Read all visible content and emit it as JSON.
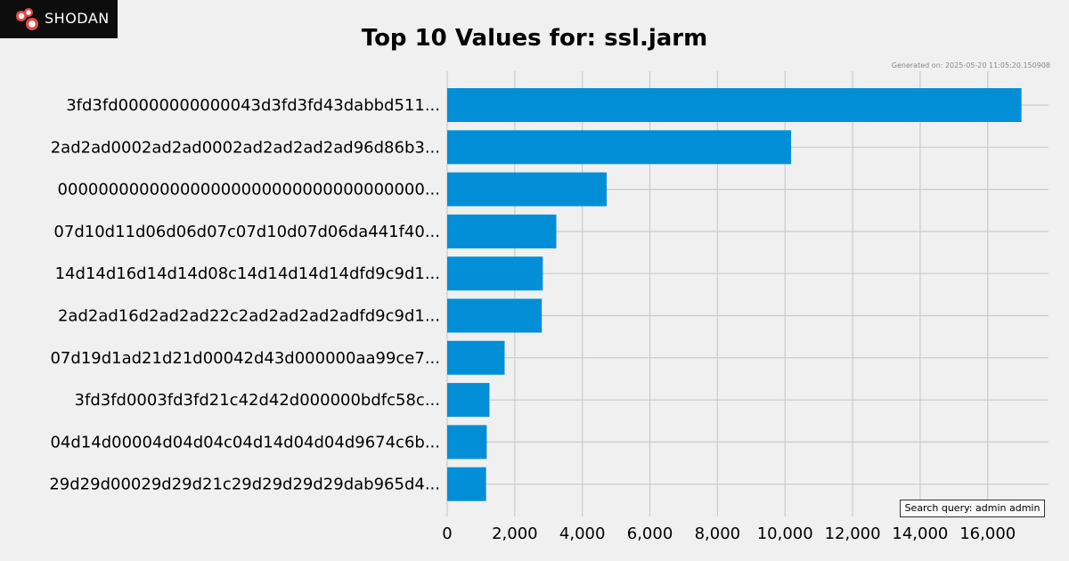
{
  "brand": {
    "name": "Shodan",
    "display": "SHODAN"
  },
  "header": {
    "title": "Top 10 Values for: ssl.jarm",
    "generated": "Generated on: 2025-05-20 11:05:20.150908"
  },
  "search_query": "Search query: admin admin",
  "colors": {
    "bar": "#028fd7",
    "background": "#f0f0f0",
    "grid": "#cbcbcb"
  },
  "chart_data": {
    "type": "bar",
    "orientation": "horizontal",
    "title": "Top 10 Values for: ssl.jarm",
    "xlabel": "",
    "ylabel": "",
    "categories": [
      "3fd3fd00000000000043d3fd3fd43dabbd511...",
      "2ad2ad0002ad2ad0002ad2ad2ad2ad96d86b3...",
      "000000000000000000000000000000000000...",
      "07d10d11d06d06d07c07d10d07d06da441f40...",
      "14d14d16d14d14d08c14d14d14d14dfd9c9d1...",
      "2ad2ad16d2ad2ad22c2ad2ad2ad2adfd9c9d1...",
      "07d19d1ad21d21d00042d43d000000aa99ce7...",
      "3fd3fd0003fd3fd21c42d42d000000bdfc58c...",
      "04d14d00004d04d04c04d14d04d04d9674c6b...",
      "29d29d00029d29d21c29d29d29d29dab965d4..."
    ],
    "values": [
      17000,
      10180,
      4720,
      3230,
      2830,
      2800,
      1700,
      1250,
      1170,
      1150
    ],
    "xlim": [
      0,
      17800
    ],
    "xticks": [
      0,
      2000,
      4000,
      6000,
      8000,
      10000,
      12000,
      14000,
      16000
    ],
    "xtick_labels": [
      "0",
      "2,000",
      "4,000",
      "6,000",
      "8,000",
      "10,000",
      "12,000",
      "14,000",
      "16,000"
    ],
    "grid": true
  }
}
